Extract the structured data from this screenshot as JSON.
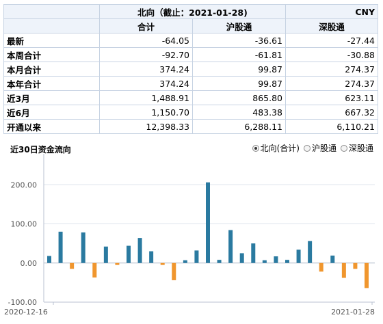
{
  "summary": {
    "title": "北向（截止：2021-01-28)",
    "currency": "CNY",
    "columns": [
      "合计",
      "沪股通",
      "深股通"
    ],
    "rows": [
      {
        "label": "最新",
        "values": [
          "-64.05",
          "-36.61",
          "-27.44"
        ]
      },
      {
        "label": "本周合计",
        "values": [
          "-92.70",
          "-61.81",
          "-30.88"
        ]
      },
      {
        "label": "本月合计",
        "values": [
          "374.24",
          "99.87",
          "274.37"
        ]
      },
      {
        "label": "本年合计",
        "values": [
          "374.24",
          "99.87",
          "274.37"
        ]
      },
      {
        "label": "近3月",
        "values": [
          "1,488.91",
          "865.80",
          "623.11"
        ]
      },
      {
        "label": "近6月",
        "values": [
          "1,150.70",
          "483.38",
          "667.32"
        ]
      },
      {
        "label": "开通以来",
        "values": [
          "12,398.33",
          "6,288.11",
          "6,110.21"
        ]
      }
    ]
  },
  "chart_title": "近30日资金流向",
  "legend": {
    "options": [
      "北向(合计)",
      "沪股通",
      "深股通"
    ],
    "selected": 0
  },
  "chart_data": {
    "type": "bar",
    "ylim": [
      -100,
      300
    ],
    "yticks": [
      "300.00",
      "200.00",
      "100.00",
      "0.00",
      "-100.00"
    ],
    "x_start_label": "2020-12-16",
    "x_end_label": "2021-01-28",
    "positive_color": "#2a7aa0",
    "negative_color": "#f0962e",
    "values": [
      18,
      80,
      -15,
      78,
      -37,
      42,
      -5,
      44,
      64,
      30,
      -5,
      -44,
      7,
      32,
      206,
      8,
      84,
      25,
      50,
      7,
      17,
      8,
      34,
      56,
      -22,
      19,
      -38,
      -15,
      -64
    ]
  }
}
